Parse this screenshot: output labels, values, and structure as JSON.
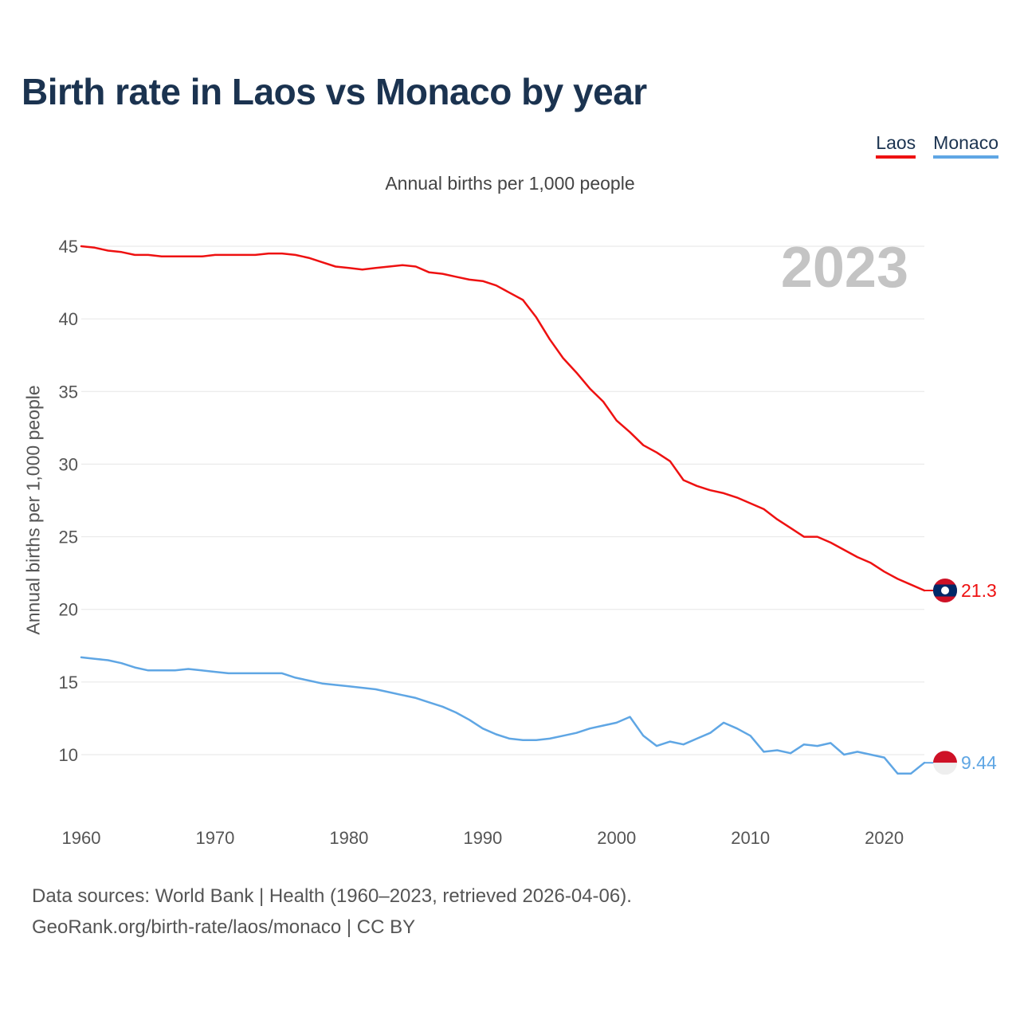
{
  "header": {
    "title": "Birth rate in Laos vs Monaco by year",
    "subtitle": "Annual births per 1,000 people"
  },
  "legend": [
    {
      "label": "Laos",
      "color": "#ee1111"
    },
    {
      "label": "Monaco",
      "color": "#5fa6e4"
    }
  ],
  "footer": {
    "line1": "Data sources: World Bank | Health (1960–2023, retrieved 2026-04-06).",
    "line2": "GeoRank.org/birth-rate/laos/monaco | CC BY"
  },
  "chart_data": {
    "type": "line",
    "title": "Birth rate in Laos vs Monaco by year",
    "subtitle": "Annual births per 1,000 people",
    "xlabel": "",
    "ylabel": "Annual births per 1,000 people",
    "year_label": "2023",
    "xlim": [
      1960,
      2023
    ],
    "ylim": [
      6,
      46
    ],
    "x_ticks": [
      1960,
      1970,
      1980,
      1990,
      2000,
      2010,
      2020
    ],
    "y_ticks": [
      10,
      15,
      20,
      25,
      30,
      35,
      40,
      45
    ],
    "grid": true,
    "legend_position": "top-right",
    "x": [
      1960,
      1961,
      1962,
      1963,
      1964,
      1965,
      1966,
      1967,
      1968,
      1969,
      1970,
      1971,
      1972,
      1973,
      1974,
      1975,
      1976,
      1977,
      1978,
      1979,
      1980,
      1981,
      1982,
      1983,
      1984,
      1985,
      1986,
      1987,
      1988,
      1989,
      1990,
      1991,
      1992,
      1993,
      1994,
      1995,
      1996,
      1997,
      1998,
      1999,
      2000,
      2001,
      2002,
      2003,
      2004,
      2005,
      2006,
      2007,
      2008,
      2009,
      2010,
      2011,
      2012,
      2013,
      2014,
      2015,
      2016,
      2017,
      2018,
      2019,
      2020,
      2021,
      2022,
      2023
    ],
    "series": [
      {
        "name": "Laos",
        "color": "#ee1111",
        "end_label": "21.3",
        "values": [
          45.0,
          44.9,
          44.7,
          44.6,
          44.4,
          44.4,
          44.3,
          44.3,
          44.3,
          44.3,
          44.4,
          44.4,
          44.4,
          44.4,
          44.5,
          44.5,
          44.4,
          44.2,
          43.9,
          43.6,
          43.5,
          43.4,
          43.5,
          43.6,
          43.7,
          43.6,
          43.2,
          43.1,
          42.9,
          42.7,
          42.6,
          42.3,
          41.8,
          41.3,
          40.1,
          38.6,
          37.3,
          36.3,
          35.2,
          34.3,
          33.0,
          32.2,
          31.3,
          30.8,
          30.2,
          28.9,
          28.5,
          28.2,
          28.0,
          27.7,
          27.3,
          26.9,
          26.2,
          25.6,
          25.0,
          25.0,
          24.6,
          24.1,
          23.6,
          23.2,
          22.6,
          22.1,
          21.7,
          21.3
        ]
      },
      {
        "name": "Monaco",
        "color": "#5fa6e4",
        "end_label": "9.44",
        "values": [
          16.7,
          16.6,
          16.5,
          16.3,
          16.0,
          15.8,
          15.8,
          15.8,
          15.9,
          15.8,
          15.7,
          15.6,
          15.6,
          15.6,
          15.6,
          15.6,
          15.3,
          15.1,
          14.9,
          14.8,
          14.7,
          14.6,
          14.5,
          14.3,
          14.1,
          13.9,
          13.6,
          13.3,
          12.9,
          12.4,
          11.8,
          11.4,
          11.1,
          11.0,
          11.0,
          11.1,
          11.3,
          11.5,
          11.8,
          12.0,
          12.2,
          12.6,
          11.3,
          10.6,
          10.9,
          10.7,
          11.1,
          11.5,
          12.2,
          11.8,
          11.3,
          10.2,
          10.3,
          10.1,
          10.7,
          10.6,
          10.8,
          10.0,
          10.2,
          10.0,
          9.8,
          8.7,
          8.7,
          9.44
        ]
      }
    ]
  }
}
